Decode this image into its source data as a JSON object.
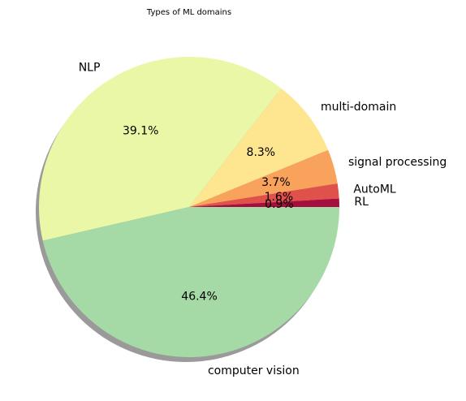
{
  "chart_data": {
    "type": "pie",
    "title": "Types of ML domains",
    "categories": [
      "RL",
      "AutoML",
      "signal processing",
      "multi-domain",
      "NLP",
      "computer vision"
    ],
    "values": [
      0.9,
      1.6,
      3.7,
      8.3,
      39.1,
      46.4
    ],
    "percent_labels": [
      "0.9%",
      "1.6%",
      "3.7%",
      "8.3%",
      "39.1%",
      "46.4%"
    ],
    "colors": [
      "#a50f3f",
      "#e0514b",
      "#f9a25c",
      "#fee590",
      "#eaf7a6",
      "#a5d9a5"
    ],
    "start_angle_deg": 0,
    "direction": "counterclockwise",
    "shadow": true,
    "legend": "none"
  }
}
